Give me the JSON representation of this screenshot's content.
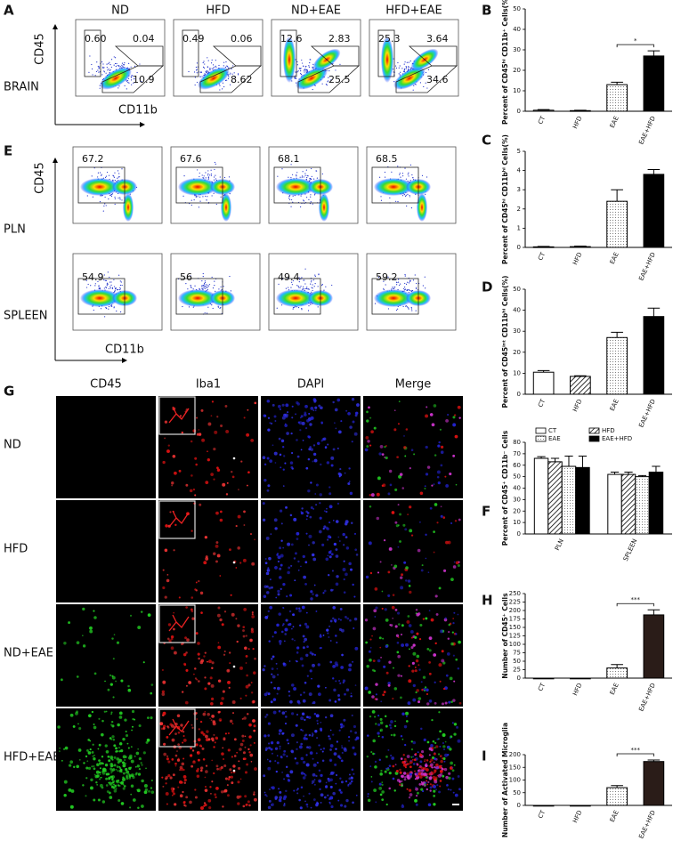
{
  "brain_flow": {
    "panel": "A",
    "groups": [
      "ND",
      "HFD",
      "ND+EAE",
      "HFD+EAE"
    ],
    "y_axis": "CD45",
    "x_axis": "CD11b",
    "row": "BRAIN",
    "gates": [
      [
        "0.60",
        "0.04",
        "10.9"
      ],
      [
        "0.49",
        "0.06",
        "8.62"
      ],
      [
        "12.6",
        "2.83",
        "25.5"
      ],
      [
        "25.3",
        "3.64",
        "34.6"
      ]
    ]
  },
  "lymphoid_flow": {
    "panel": "E",
    "y_axis": "CD45",
    "x_axis": "CD11b",
    "rows": [
      {
        "name": "PLN",
        "gates": [
          "67.2",
          "67.6",
          "68.1",
          "68.5"
        ]
      },
      {
        "name": "SPLEEN",
        "gates": [
          "54.9",
          "56",
          "49.4",
          "59.2"
        ]
      }
    ]
  },
  "microscopy": {
    "panel": "G",
    "columns": [
      "CD45",
      "Iba1",
      "DAPI",
      "Merge"
    ],
    "rows": [
      "ND",
      "HFD",
      "ND+EAE",
      "HFD+EAE"
    ]
  },
  "chart_data": [
    {
      "type": "bar",
      "panel": "B",
      "y_label": "Percent of CD45ʰⁱ CD11b⁺ Cells(%)",
      "categories": [
        "CT",
        "HFD",
        "EAE",
        "EAE+HFD"
      ],
      "values": [
        0.5,
        0.3,
        13,
        27
      ],
      "errors": [
        0.3,
        0.2,
        1.2,
        2.5
      ],
      "bar_styles": [
        "open",
        "hatched",
        "dotted",
        "solid"
      ],
      "color": "#000000",
      "ylim": [
        0,
        50
      ],
      "yticks": [
        0,
        10,
        20,
        30,
        40,
        50
      ],
      "significance": "*"
    },
    {
      "type": "bar",
      "panel": "C",
      "y_label": "Percent of CD45ʰⁱ CD11bʰⁱ Cells(%)",
      "categories": [
        "CT",
        "HFD",
        "EAE",
        "EAE+HFD"
      ],
      "values": [
        0.03,
        0.04,
        2.4,
        3.8
      ],
      "errors": [
        0.02,
        0.03,
        0.6,
        0.25
      ],
      "bar_styles": [
        "open",
        "hatched",
        "dotted",
        "solid"
      ],
      "color": "#000000",
      "ylim": [
        0,
        5
      ],
      "yticks": [
        0,
        1,
        2,
        3,
        4,
        5
      ]
    },
    {
      "type": "bar",
      "panel": "D",
      "y_label": "Percent of CD45ⁱⁿᵗ CD11bʰⁱ Cells(%)",
      "categories": [
        "CT",
        "HFD",
        "EAE",
        "EAE+HFD"
      ],
      "values": [
        10.5,
        8.5,
        27,
        37
      ],
      "errors": [
        0.8,
        0.3,
        2.5,
        4
      ],
      "bar_styles": [
        "open",
        "hatched",
        "dotted",
        "solid"
      ],
      "color": "#000000",
      "ylim": [
        0,
        50
      ],
      "yticks": [
        0,
        10,
        20,
        30,
        40,
        50
      ]
    },
    {
      "type": "bar",
      "panel": "F",
      "y_label": "Percent of CD45⁺ CD11b⁻ Cells",
      "categories": [
        "PLN",
        "SPLEEN"
      ],
      "series": [
        {
          "name": "CT",
          "style": "open",
          "color": "#000000",
          "values": [
            66,
            52
          ],
          "errors": [
            1.5,
            2
          ]
        },
        {
          "name": "HFD",
          "style": "hatched",
          "color": "#000000",
          "values": [
            63,
            52
          ],
          "errors": [
            3,
            2
          ]
        },
        {
          "name": "EAE",
          "style": "dotted",
          "color": "#000000",
          "values": [
            59,
            50
          ],
          "errors": [
            9,
            1
          ]
        },
        {
          "name": "EAE+HFD",
          "style": "solid",
          "color": "#000000",
          "values": [
            58,
            54
          ],
          "errors": [
            10,
            5
          ]
        }
      ],
      "ylim": [
        0,
        80
      ],
      "yticks": [
        0,
        10,
        20,
        30,
        40,
        50,
        60,
        70,
        80
      ]
    },
    {
      "type": "bar",
      "panel": "H",
      "y_label": "Number of CD45⁺ Cells",
      "categories": [
        "CT",
        "HFD",
        "EAE",
        "EAE+HFD"
      ],
      "values": [
        0,
        0,
        30,
        187
      ],
      "errors": [
        0,
        0,
        10,
        15
      ],
      "bar_styles": [
        "open",
        "hatched",
        "dotted",
        "solid"
      ],
      "color": "#2a1c18",
      "ylim": [
        0,
        250
      ],
      "yticks": [
        0,
        25,
        50,
        75,
        100,
        125,
        150,
        175,
        200,
        225,
        250
      ],
      "significance": "***"
    },
    {
      "type": "bar",
      "panel": "I",
      "y_label": "Number of Activated Microglia",
      "categories": [
        "CT",
        "HFD",
        "EAE",
        "EAE+HFD"
      ],
      "values": [
        0,
        0,
        70,
        173
      ],
      "errors": [
        0,
        0,
        8,
        6
      ],
      "bar_styles": [
        "open",
        "hatched",
        "dotted",
        "solid"
      ],
      "color": "#2a1c18",
      "ylim": [
        0,
        200
      ],
      "yticks": [
        0,
        50,
        100,
        150,
        200
      ],
      "significance": "***"
    }
  ]
}
